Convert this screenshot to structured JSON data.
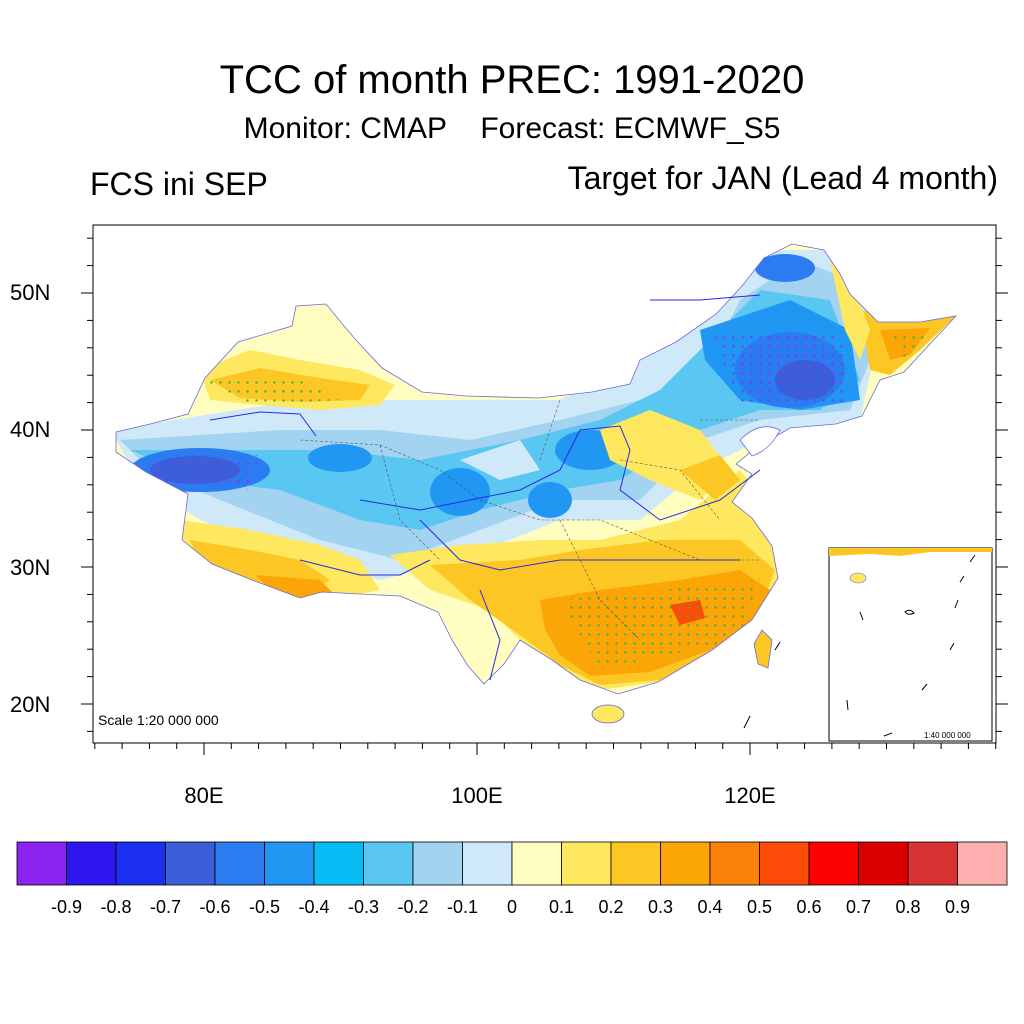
{
  "title": "TCC of month PREC: 1991-2020",
  "subtitle": {
    "monitor": "Monitor: CMAP",
    "forecast": "Forecast: ECMWF_S5"
  },
  "left_label": "FCS ini SEP",
  "right_label": "Target for JAN (Lead 4 month)",
  "map": {
    "lat_ticks": [
      "50N",
      "40N",
      "30N",
      "20N"
    ],
    "lon_ticks": [
      "80E",
      "100E",
      "120E"
    ],
    "scale_text": "Scale 1:20 000 000",
    "inset_scale_text": "1:40 000 000"
  },
  "colorbar": {
    "colors": [
      "#8b22ee",
      "#2f16ee",
      "#1c2fee",
      "#3b5fd9",
      "#2a7cf0",
      "#1f97f3",
      "#06bdf6",
      "#5ac6f2",
      "#a2d3f0",
      "#cfe9f8",
      "#fffdc0",
      "#fde85f",
      "#fcc724",
      "#fba506",
      "#fb810a",
      "#fc4a08",
      "#fd0000",
      "#db0000",
      "#d83333",
      "#fdafaf"
    ],
    "labels": [
      "-0.9",
      "-0.8",
      "-0.7",
      "-0.6",
      "-0.5",
      "-0.4",
      "-0.3",
      "-0.2",
      "-0.1",
      "0",
      "0.1",
      "0.2",
      "0.3",
      "0.4",
      "0.5",
      "0.6",
      "0.7",
      "0.8",
      "0.9"
    ]
  }
}
